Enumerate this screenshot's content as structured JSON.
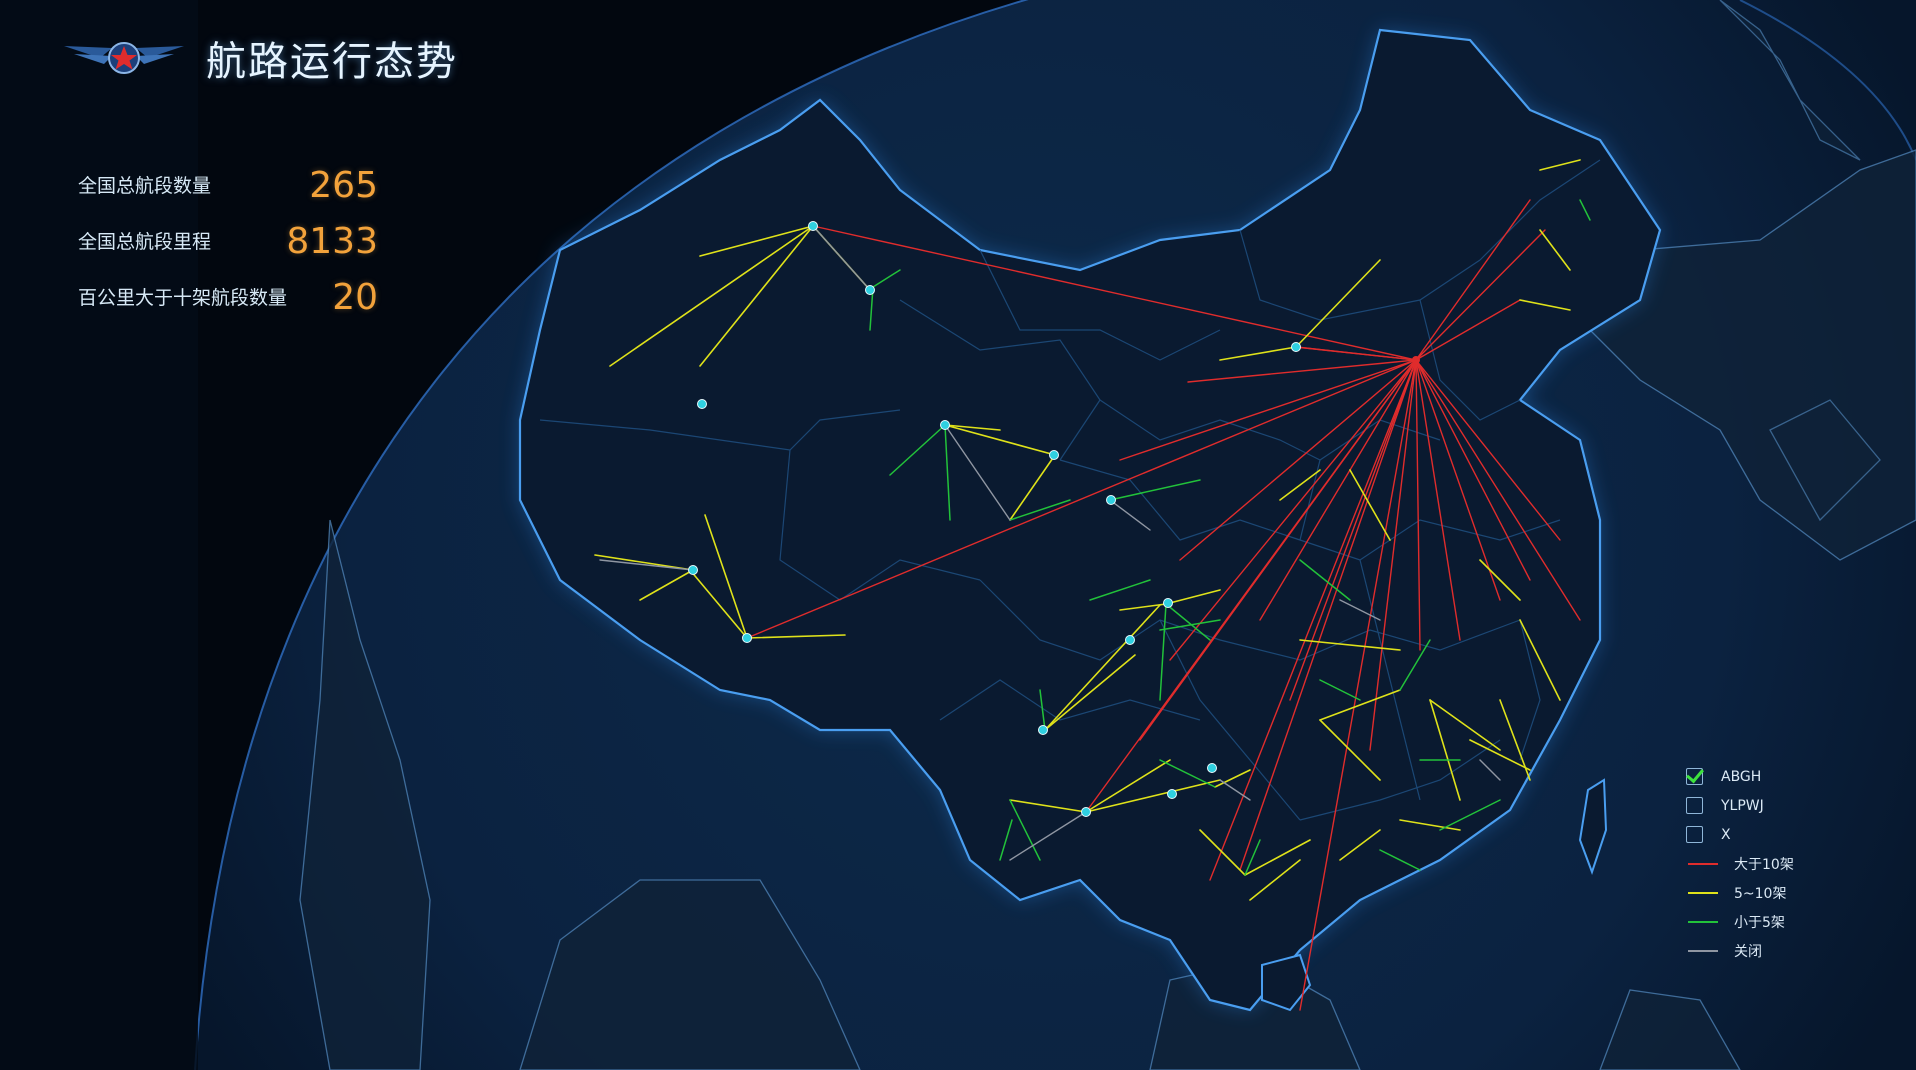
{
  "header": {
    "title": "航路运行态势"
  },
  "stats": [
    {
      "label": "全国总航段数量",
      "value": "265"
    },
    {
      "label": "全国总航段里程",
      "value": "8133"
    },
    {
      "label": "百公里大于十架航段数量",
      "value": "20"
    }
  ],
  "legend": {
    "filters": [
      {
        "label": "ABGH",
        "checked": true
      },
      {
        "label": "YLPWJ",
        "checked": false
      },
      {
        "label": "X",
        "checked": false
      }
    ],
    "categories": [
      {
        "label": "大于10架",
        "color": "#e02c2c"
      },
      {
        "label": "5~10架",
        "color": "#dfe21a"
      },
      {
        "label": "小于5架",
        "color": "#22c23a"
      },
      {
        "label": "关闭",
        "color": "#8f96a2"
      }
    ]
  },
  "colors": {
    "background": "#030a16",
    "border": "#3f8fd8",
    "accent": "#f2a23b"
  }
}
